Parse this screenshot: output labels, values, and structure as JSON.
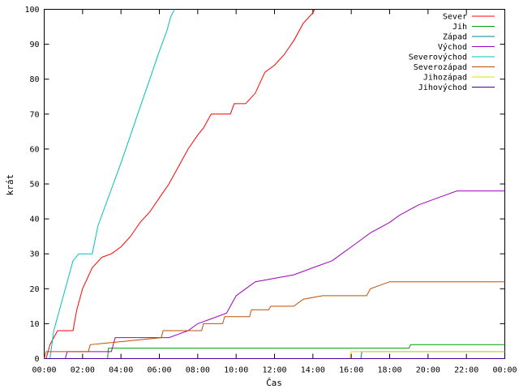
{
  "chart_data": {
    "type": "line",
    "xlabel": "Čas",
    "ylabel": "krát",
    "xlim": [
      0,
      24
    ],
    "ylim": [
      0,
      100
    ],
    "x_ticks": [
      {
        "value": 0,
        "label": "00:00"
      },
      {
        "value": 2,
        "label": "02:00"
      },
      {
        "value": 4,
        "label": "04:00"
      },
      {
        "value": 6,
        "label": "06:00"
      },
      {
        "value": 8,
        "label": "08:00"
      },
      {
        "value": 10,
        "label": "10:00"
      },
      {
        "value": 12,
        "label": "12:00"
      },
      {
        "value": 14,
        "label": "14:00"
      },
      {
        "value": 16,
        "label": "16:00"
      },
      {
        "value": 18,
        "label": "18:00"
      },
      {
        "value": 20,
        "label": "20:00"
      },
      {
        "value": 22,
        "label": "22:00"
      },
      {
        "value": 24,
        "label": "00:00"
      }
    ],
    "y_ticks": [
      0,
      10,
      20,
      30,
      40,
      50,
      60,
      70,
      80,
      90,
      100
    ],
    "grid": false,
    "legend_position": "top-right",
    "series": [
      {
        "name": "Sever",
        "color": "#ff0000",
        "points": [
          [
            0.1,
            0
          ],
          [
            0.3,
            4
          ],
          [
            0.5,
            6
          ],
          [
            0.7,
            8
          ],
          [
            1.5,
            8
          ],
          [
            1.7,
            14
          ],
          [
            2.0,
            20
          ],
          [
            2.5,
            26
          ],
          [
            3.0,
            29
          ],
          [
            3.5,
            30
          ],
          [
            4.0,
            32
          ],
          [
            4.5,
            35
          ],
          [
            5.0,
            39
          ],
          [
            5.5,
            42
          ],
          [
            6.0,
            46
          ],
          [
            6.5,
            50
          ],
          [
            7.0,
            55
          ],
          [
            7.5,
            60
          ],
          [
            8.0,
            64
          ],
          [
            8.3,
            66
          ],
          [
            8.7,
            70
          ],
          [
            9.7,
            70
          ],
          [
            9.9,
            73
          ],
          [
            10.5,
            73
          ],
          [
            11.0,
            76
          ],
          [
            11.5,
            82
          ],
          [
            12.0,
            84
          ],
          [
            12.5,
            87
          ],
          [
            13.0,
            91
          ],
          [
            13.5,
            96
          ],
          [
            14.0,
            99
          ],
          [
            14.1,
            100
          ]
        ]
      },
      {
        "name": "Jih",
        "color": "#00a000",
        "points": [
          [
            0,
            0
          ],
          [
            3.3,
            0
          ],
          [
            3.35,
            3
          ],
          [
            19.0,
            3
          ],
          [
            19.1,
            4
          ],
          [
            24,
            4
          ]
        ]
      },
      {
        "name": "Západ",
        "color": "#0080a0",
        "points": [
          [
            0,
            0
          ],
          [
            16.5,
            0
          ],
          [
            16.55,
            2
          ],
          [
            24,
            2
          ]
        ]
      },
      {
        "name": "Východ",
        "color": "#a000c0",
        "points": [
          [
            0,
            0
          ],
          [
            1.1,
            0
          ],
          [
            1.2,
            2
          ],
          [
            3.5,
            2
          ],
          [
            3.7,
            6
          ],
          [
            6.5,
            6
          ],
          [
            7.0,
            7
          ],
          [
            7.5,
            8
          ],
          [
            8.0,
            10
          ],
          [
            8.5,
            11
          ],
          [
            9.5,
            13
          ],
          [
            10.0,
            18
          ],
          [
            10.5,
            20
          ],
          [
            11.0,
            22
          ],
          [
            13.0,
            24
          ],
          [
            14.0,
            26
          ],
          [
            15.0,
            28
          ],
          [
            15.5,
            30
          ],
          [
            16.0,
            32
          ],
          [
            16.5,
            34
          ],
          [
            17.0,
            36
          ],
          [
            18.0,
            39
          ],
          [
            18.5,
            41
          ],
          [
            19.5,
            44
          ],
          [
            20.5,
            46
          ],
          [
            21.5,
            48
          ],
          [
            24,
            48
          ]
        ]
      },
      {
        "name": "Severovýchod",
        "color": "#00c0c0",
        "points": [
          [
            0,
            0
          ],
          [
            0.3,
            0
          ],
          [
            0.5,
            8
          ],
          [
            0.8,
            14
          ],
          [
            1.2,
            22
          ],
          [
            1.5,
            28
          ],
          [
            1.8,
            30
          ],
          [
            2.5,
            30
          ],
          [
            2.8,
            38
          ],
          [
            3.2,
            44
          ],
          [
            3.6,
            50
          ],
          [
            4.0,
            56
          ],
          [
            4.5,
            64
          ],
          [
            5.0,
            72
          ],
          [
            5.5,
            80
          ],
          [
            6.0,
            88
          ],
          [
            6.4,
            94
          ],
          [
            6.6,
            98
          ],
          [
            6.8,
            100
          ]
        ]
      },
      {
        "name": "Severozápad",
        "color": "#c05000",
        "points": [
          [
            0,
            0
          ],
          [
            0.1,
            2
          ],
          [
            2.3,
            2
          ],
          [
            2.4,
            4
          ],
          [
            6.1,
            6
          ],
          [
            6.2,
            8
          ],
          [
            8.2,
            8
          ],
          [
            8.3,
            10
          ],
          [
            9.3,
            10
          ],
          [
            9.4,
            12
          ],
          [
            10.7,
            12
          ],
          [
            10.8,
            14
          ],
          [
            11.7,
            14
          ],
          [
            11.8,
            15
          ],
          [
            13.0,
            15
          ],
          [
            13.5,
            17
          ],
          [
            14.5,
            18
          ],
          [
            16.8,
            18
          ],
          [
            17.0,
            20
          ],
          [
            18.0,
            22
          ],
          [
            24,
            22
          ]
        ]
      },
      {
        "name": "Jihozápad",
        "color": "#e0e000",
        "points": [
          [
            0,
            0
          ],
          [
            15.9,
            0
          ],
          [
            16.0,
            2
          ],
          [
            24,
            2
          ]
        ]
      },
      {
        "name": "Jihovýchod",
        "color": "#4000a0",
        "points": [
          [
            0,
            0
          ],
          [
            24,
            0
          ]
        ]
      }
    ]
  }
}
